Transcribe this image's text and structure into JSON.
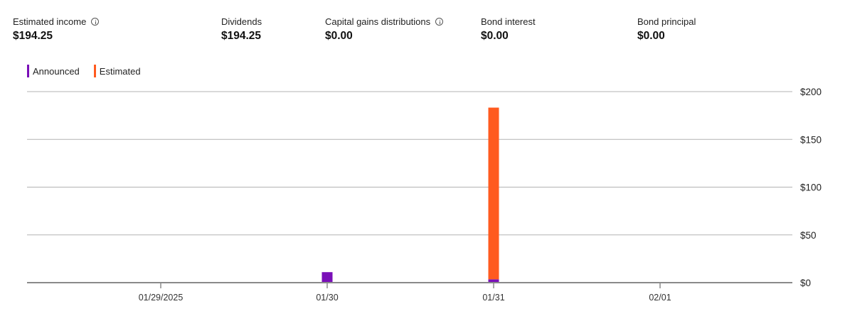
{
  "summary": {
    "estimated_income": {
      "label": "Estimated income",
      "value": "$194.25",
      "has_info": true
    },
    "dividends": {
      "label": "Dividends",
      "value": "$194.25"
    },
    "capital_gains": {
      "label": "Capital gains distributions",
      "value": "$0.00",
      "has_info": true
    },
    "bond_interest": {
      "label": "Bond interest",
      "value": "$0.00"
    },
    "bond_principal": {
      "label": "Bond principal",
      "value": "$0.00"
    }
  },
  "legend": {
    "announced": {
      "label": "Announced",
      "color": "#7a0fb8"
    },
    "estimated": {
      "label": "Estimated",
      "color": "#ff5a1f"
    }
  },
  "chart_data": {
    "type": "bar",
    "stacked": true,
    "categories": [
      "01/29/2025",
      "01/30",
      "01/31",
      "02/01"
    ],
    "series": [
      {
        "name": "Announced",
        "color": "#7a0fb8",
        "values": [
          0,
          11,
          3.5,
          0
        ]
      },
      {
        "name": "Estimated",
        "color": "#ff5a1f",
        "values": [
          0,
          0,
          179.75,
          0
        ]
      }
    ],
    "ylim": [
      0,
      200
    ],
    "y_ticks": [
      0,
      50,
      100,
      150,
      200
    ],
    "y_tick_labels": [
      "$0",
      "$50",
      "$100",
      "$150",
      "$200"
    ],
    "y_axis_side": "right",
    "grid": true,
    "legend_position": "top-left"
  }
}
